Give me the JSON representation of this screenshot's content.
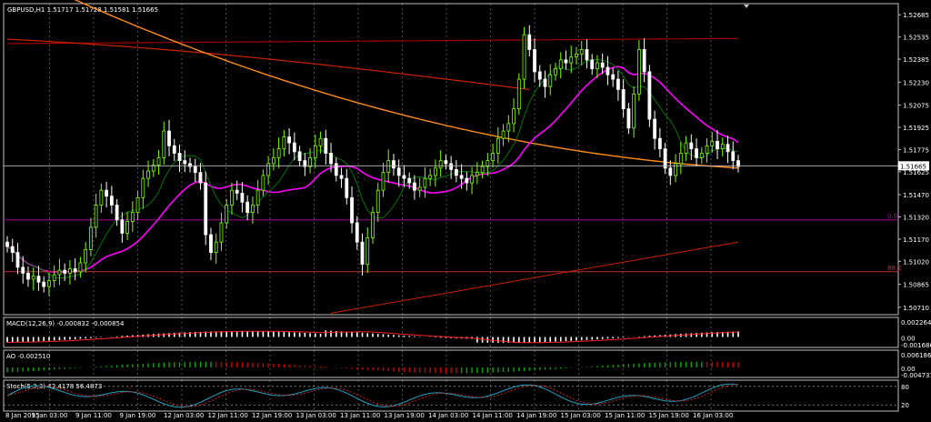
{
  "window": {
    "title": "GBPUSD,H1  1.51717 1.51728 1.51581 1.51665"
  },
  "colors": {
    "background": "#000000",
    "frame": "#c0c0c0",
    "grid": "#c0c0c0",
    "bull": "#7fff00",
    "bear": "#ffffff",
    "ma_green": "#008000",
    "ma_magenta": "#ff00ff",
    "ma_orange": "#ff8c1a",
    "ma_red": "#cc2200",
    "ma_darkred": "#a00000",
    "fib_line": "#a000a0",
    "fib_line2": "#c03030",
    "price_line": "#c0c0c0",
    "macd_hist": "#ffffff",
    "macd_signal": "#ff2020",
    "ao_up": "#00aa00",
    "ao_down": "#cc0000",
    "stoch_main": "#20a0c0",
    "stoch_signal": "#cc2020"
  },
  "price_axis": {
    "labels": [
      "1.52685",
      "1.52535",
      "1.52385",
      "1.52230",
      "1.52075",
      "1.51925",
      "1.51775",
      "1.51625",
      "1.51470",
      "1.51320",
      "1.51170",
      "1.51020",
      "1.50865",
      "1.50710"
    ],
    "current_price": "1.51665"
  },
  "fib_labels": {
    "upper": "0.0",
    "lower": "88.2"
  },
  "time_axis": {
    "labels": [
      "8 Jan 2015",
      "9 Jan 03:00",
      "9 Jan 11:00",
      "9 Jan 19:00",
      "12 Jan 03:00",
      "12 Jan 11:00",
      "12 Jan 19:00",
      "13 Jan 03:00",
      "13 Jan 11:00",
      "13 Jan 19:00",
      "14 Jan 03:00",
      "14 Jan 11:00",
      "14 Jan 19:00",
      "15 Jan 03:00",
      "15 Jan 11:00",
      "15 Jan 19:00",
      "16 Jan 03:00"
    ]
  },
  "macd": {
    "title": "MACD(12,26,9) -0.000832 -0.000854",
    "axis": [
      "0.002264",
      "0.00",
      "-0.001686"
    ]
  },
  "ao": {
    "title": "AO -0.002510",
    "axis": [
      "0.006186",
      "0.00",
      "-0.004731"
    ]
  },
  "stoch": {
    "title": "Stoch(5,3,3) 42.4178 56.4873",
    "axis": [
      "80",
      "20"
    ]
  },
  "chart_data": {
    "type": "candlestick",
    "symbol": "GBPUSD",
    "timeframe": "H1",
    "ohlc_last": {
      "open": 1.51717,
      "high": 1.51728,
      "low": 1.51581,
      "close": 1.51665
    },
    "ylim": [
      1.5066,
      1.5276
    ],
    "close_series": [
      1.5112,
      1.5108,
      1.5098,
      1.5094,
      1.509,
      1.5092,
      1.5088,
      1.5085,
      1.5089,
      1.5093,
      1.5096,
      1.5094,
      1.5097,
      1.5095,
      1.5101,
      1.511,
      1.5125,
      1.514,
      1.515,
      1.5146,
      1.514,
      1.513,
      1.5121,
      1.5129,
      1.5135,
      1.5145,
      1.5158,
      1.5163,
      1.5167,
      1.5172,
      1.519,
      1.518,
      1.5175,
      1.517,
      1.5168,
      1.5166,
      1.5162,
      1.5155,
      1.512,
      1.5108,
      1.5115,
      1.5128,
      1.514,
      1.515,
      1.5148,
      1.5142,
      1.5135,
      1.514,
      1.515,
      1.516,
      1.5168,
      1.5172,
      1.5178,
      1.5186,
      1.5182,
      1.5176,
      1.517,
      1.5166,
      1.5172,
      1.518,
      1.5185,
      1.5175,
      1.5168,
      1.516,
      1.5158,
      1.5145,
      1.5128,
      1.5115,
      1.51,
      1.5118,
      1.5135,
      1.515,
      1.5162,
      1.517,
      1.5165,
      1.516,
      1.5158,
      1.5155,
      1.515,
      1.5152,
      1.5158,
      1.516,
      1.5165,
      1.517,
      1.5168,
      1.5164,
      1.516,
      1.5158,
      1.5155,
      1.516,
      1.5162,
      1.5166,
      1.517,
      1.5175,
      1.5185,
      1.519,
      1.5195,
      1.5205,
      1.5225,
      1.5255,
      1.5245,
      1.523,
      1.5225,
      1.522,
      1.5228,
      1.5232,
      1.5238,
      1.5236,
      1.524,
      1.5242,
      1.5245,
      1.5238,
      1.5232,
      1.5236,
      1.5233,
      1.5228,
      1.5225,
      1.5218,
      1.5205,
      1.5192,
      1.5215,
      1.5245,
      1.523,
      1.5198,
      1.5185,
      1.5178,
      1.5165,
      1.516,
      1.5168,
      1.5175,
      1.5182,
      1.5178,
      1.5172,
      1.5175,
      1.518,
      1.5183,
      1.5178,
      1.5181,
      1.5176,
      1.517,
      1.5166
    ],
    "moving_averages": [
      {
        "period": "fast",
        "color": "#008000"
      },
      {
        "period": "mid",
        "color": "#ff00ff"
      },
      {
        "period": "slow",
        "color": "#ff8c1a"
      },
      {
        "period": "long",
        "color": "#cc2200"
      }
    ],
    "horizontal_levels": [
      {
        "label": "0.0",
        "value": 1.513
      },
      {
        "label": "88.2",
        "value": 1.5095
      }
    ],
    "x_labels": [
      "8 Jan 2015",
      "9 Jan 03:00",
      "9 Jan 11:00",
      "9 Jan 19:00",
      "12 Jan 03:00",
      "12 Jan 11:00",
      "12 Jan 19:00",
      "13 Jan 03:00",
      "13 Jan 11:00",
      "13 Jan 19:00",
      "14 Jan 03:00",
      "14 Jan 11:00",
      "14 Jan 19:00",
      "15 Jan 03:00",
      "15 Jan 11:00",
      "15 Jan 19:00",
      "16 Jan 03:00"
    ]
  }
}
